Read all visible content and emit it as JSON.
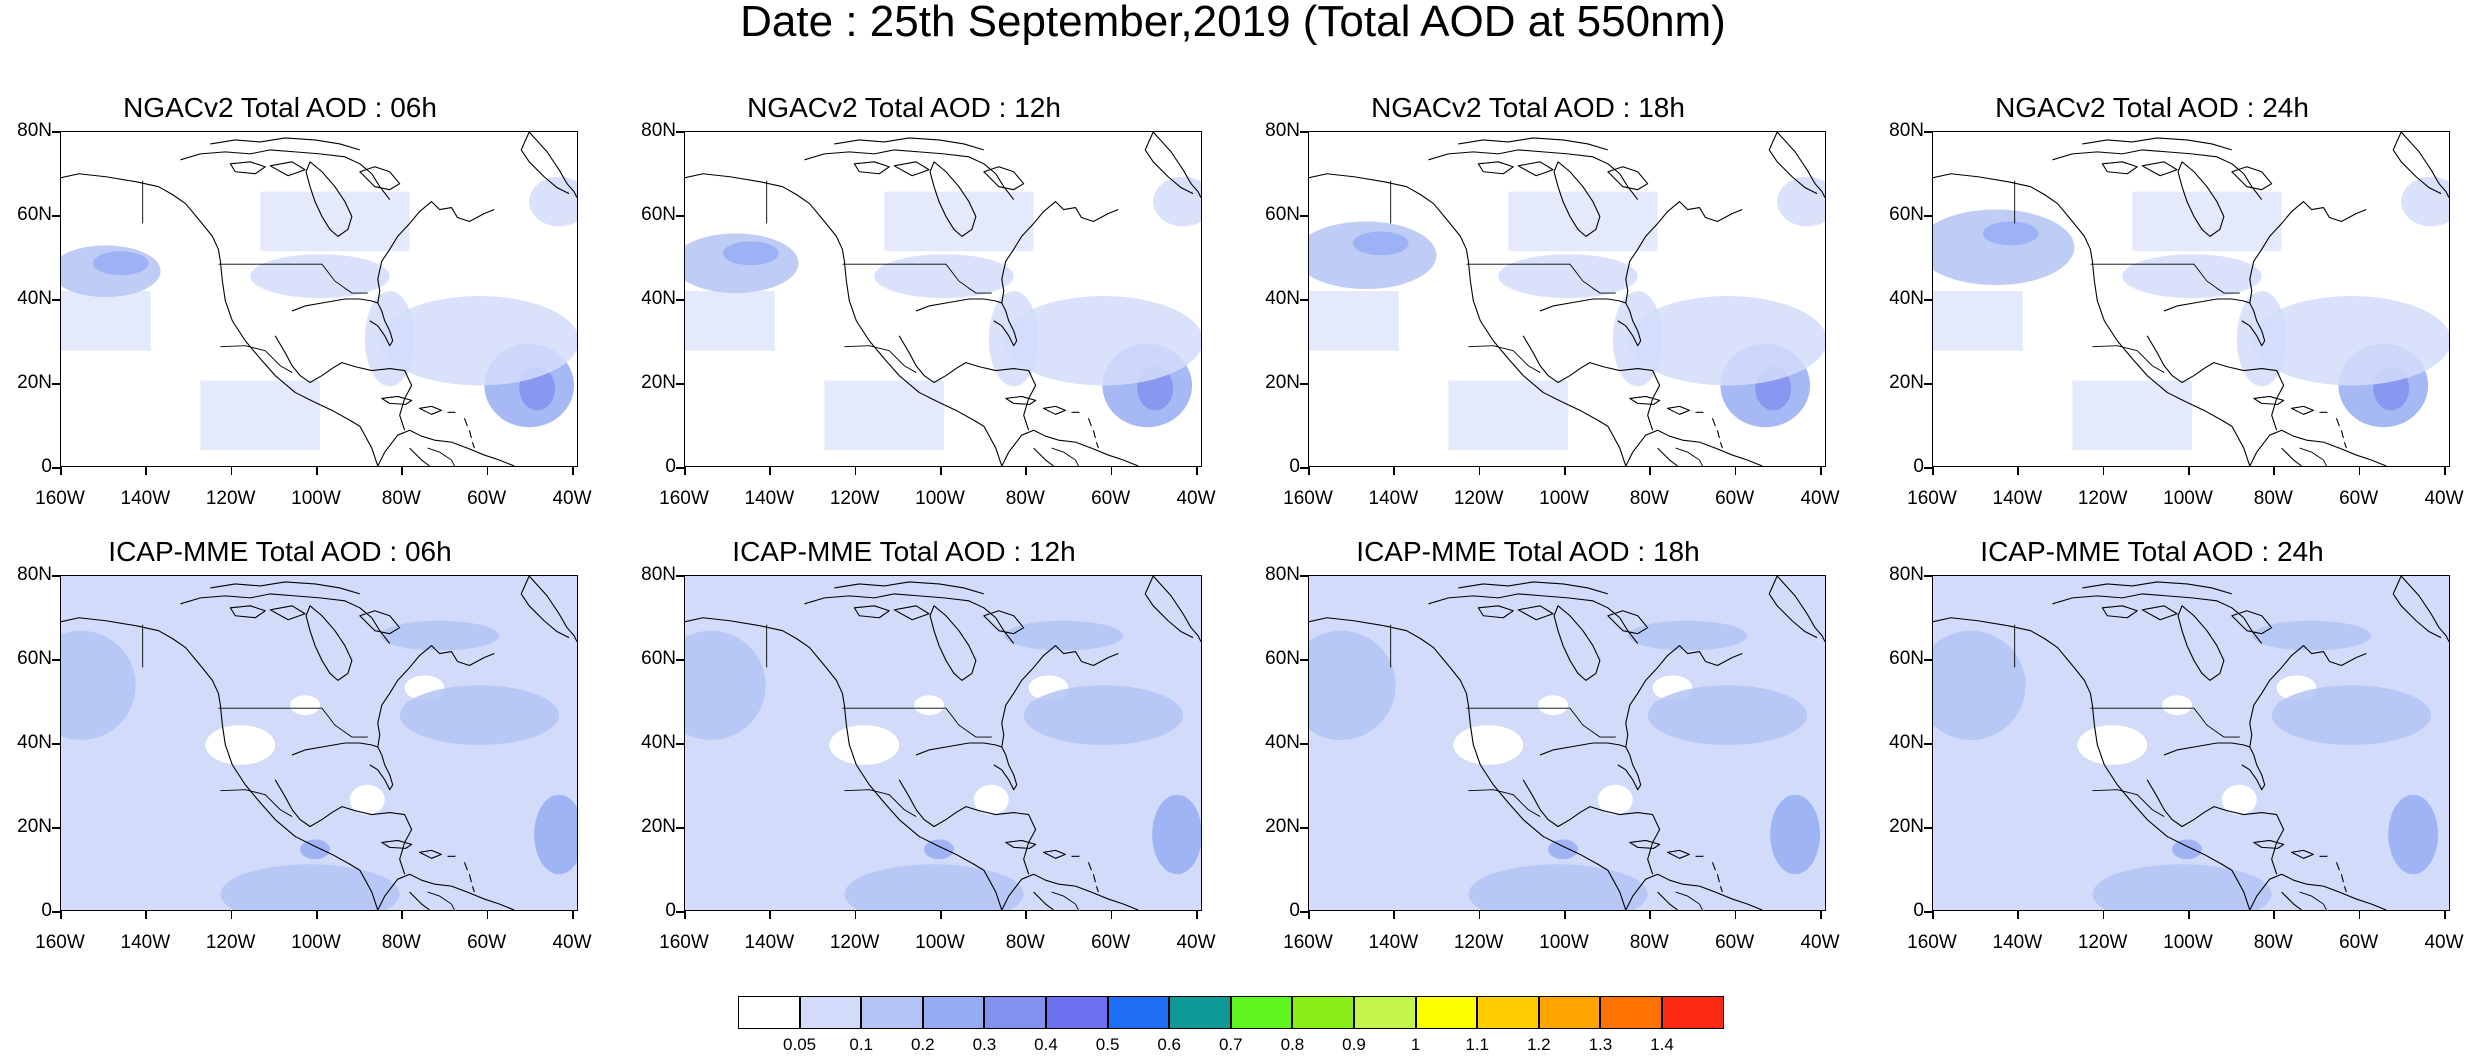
{
  "title": "Date : 25th September,2019 (Total AOD at 550nm)",
  "panels": [
    {
      "title": "NGACv2 Total AOD : 06h",
      "model": "ngac",
      "lead": 0
    },
    {
      "title": "NGACv2 Total AOD : 12h",
      "model": "ngac",
      "lead": 1
    },
    {
      "title": "NGACv2 Total AOD : 18h",
      "model": "ngac",
      "lead": 2
    },
    {
      "title": "NGACv2 Total AOD : 24h",
      "model": "ngac",
      "lead": 3
    },
    {
      "title": "ICAP-MME Total AOD : 06h",
      "model": "icap",
      "lead": 0
    },
    {
      "title": "ICAP-MME Total AOD : 12h",
      "model": "icap",
      "lead": 1
    },
    {
      "title": "ICAP-MME Total AOD : 18h",
      "model": "icap",
      "lead": 2
    },
    {
      "title": "ICAP-MME Total AOD : 24h",
      "model": "icap",
      "lead": 3
    }
  ],
  "lat_ticks": [
    "80N",
    "60N",
    "40N",
    "20N",
    "0"
  ],
  "lon_ticks": [
    "160W",
    "140W",
    "120W",
    "100W",
    "80W",
    "60W",
    "40W"
  ],
  "colorbar": {
    "colors": [
      "#ffffff",
      "#d2dcfa",
      "#b4c4f5",
      "#96adf3",
      "#8291ee",
      "#6b6ff0",
      "#1f6cf5",
      "#0f9a98",
      "#5ff51f",
      "#88ee15",
      "#c3f54b",
      "#ffff00",
      "#ffcc00",
      "#ffa400",
      "#ff7400",
      "#ff2a12"
    ],
    "labels": [
      "0.05",
      "0.1",
      "0.2",
      "0.3",
      "0.4",
      "0.5",
      "0.6",
      "0.7",
      "0.8",
      "0.9",
      "1",
      "1.1",
      "1.2",
      "1.3",
      "1.4"
    ]
  }
}
